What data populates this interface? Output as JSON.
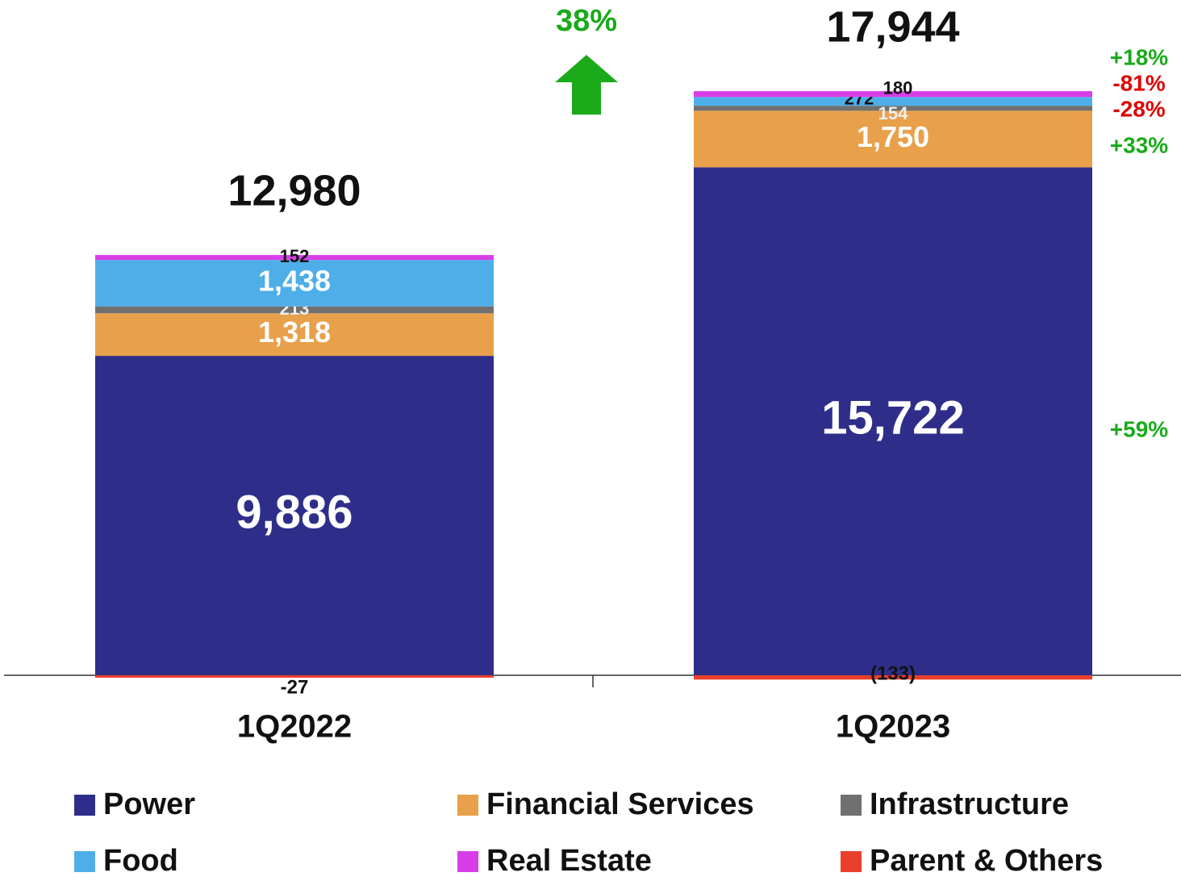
{
  "chart_data": {
    "type": "stacked_bar",
    "categories": [
      "1Q2022",
      "1Q2023"
    ],
    "series": [
      {
        "name": "Power",
        "color": "#2e2e8a",
        "values": [
          9886,
          15722
        ],
        "value_labels": [
          "9,886",
          "15,722"
        ],
        "change": "+59%",
        "change_color": "#1aaa1a"
      },
      {
        "name": "Financial Services",
        "color": "#e8a04a",
        "values": [
          1318,
          1750
        ],
        "value_labels": [
          "1,318",
          "1,750"
        ],
        "change": "+33%",
        "change_color": "#1aaa1a"
      },
      {
        "name": "Infrastructure",
        "color": "#707070",
        "values": [
          213,
          154
        ],
        "change": "-28%",
        "change_color": "#e00000"
      },
      {
        "name": "Food",
        "color": "#4eaee8",
        "values": [
          1438,
          272
        ],
        "value_labels": [
          "1,438",
          "272"
        ],
        "change": "-81%",
        "change_color": "#e00000"
      },
      {
        "name": "Real Estate",
        "color": "#d83ee8",
        "values": [
          152,
          180
        ],
        "change": "+18%",
        "change_color": "#1aaa1a"
      },
      {
        "name": "Parent & Others",
        "color": "#e8402a",
        "values": [
          -27,
          -133
        ],
        "value_labels": [
          "-27",
          "(133)"
        ]
      }
    ],
    "totals": [
      12980,
      17944
    ],
    "total_labels": [
      "12,980",
      "17,944"
    ],
    "growth": "38%",
    "growth_color": "#1aaa1a"
  }
}
